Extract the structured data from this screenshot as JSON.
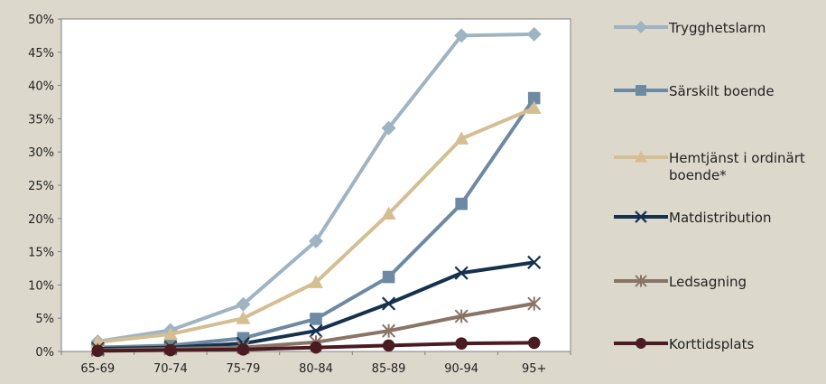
{
  "chart_data": {
    "type": "line",
    "categories": [
      "65-69",
      "70-74",
      "75-79",
      "80-84",
      "85-89",
      "90-94",
      "95+"
    ],
    "y_ticks": [
      "0%",
      "5%",
      "10%",
      "15%",
      "20%",
      "25%",
      "30%",
      "35%",
      "40%",
      "45%",
      "50%"
    ],
    "ylim": [
      0,
      50
    ],
    "y_unit": "%",
    "grid": false,
    "legend_position": "right",
    "series": [
      {
        "name": "Trygghetslarm",
        "values": [
          1.5,
          3.2,
          7.1,
          16.6,
          33.6,
          47.5,
          47.7
        ],
        "color": "#9fb4c3",
        "marker": "diamond"
      },
      {
        "name": "Särskilt boende",
        "values": [
          0.6,
          0.9,
          2.0,
          4.9,
          11.2,
          22.2,
          38.1
        ],
        "color": "#6d8aa2",
        "marker": "square"
      },
      {
        "name": "Hemtjänst i ordinärt boende*",
        "values": [
          1.4,
          2.6,
          5.0,
          10.4,
          20.7,
          32.0,
          36.6
        ],
        "color": "#d4be92",
        "marker": "triangle"
      },
      {
        "name": "Matdistribution",
        "values": [
          0.4,
          0.6,
          1.2,
          3.1,
          7.2,
          11.8,
          13.4
        ],
        "color": "#14314d",
        "marker": "x"
      },
      {
        "name": "Ledsagning",
        "values": [
          0.2,
          0.4,
          0.6,
          1.4,
          3.1,
          5.3,
          7.2
        ],
        "color": "#8a7467",
        "marker": "star"
      },
      {
        "name": "Korttidsplats",
        "values": [
          0.1,
          0.2,
          0.3,
          0.6,
          0.9,
          1.2,
          1.3
        ],
        "color": "#4a1c22",
        "marker": "circle"
      }
    ]
  }
}
